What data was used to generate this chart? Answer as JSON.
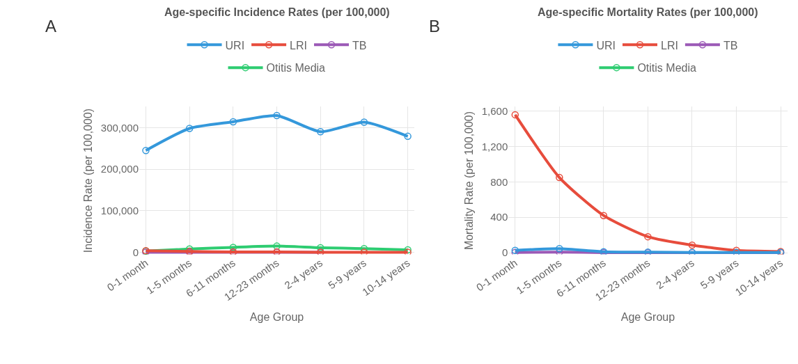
{
  "chart_data": [
    {
      "type": "line",
      "title": "Age-specific Incidence Rates (per 100,000)",
      "annotations": [
        "A"
      ],
      "xlabel": "Age Group",
      "ylabel": "Incidence Rate (per 100,000)",
      "categories": [
        "0-1 month",
        "1-5 months",
        "6-11 months",
        "12-23 months",
        "2-4 years",
        "5-9 years",
        "10-14 years"
      ],
      "series": [
        {
          "name": "URI",
          "color": "#3498db",
          "values": [
            245000,
            298000,
            314000,
            329000,
            290000,
            313000,
            279000
          ]
        },
        {
          "name": "LRI",
          "color": "#e74c3c",
          "values": [
            4000,
            2000,
            1000,
            1000,
            0,
            0,
            0
          ]
        },
        {
          "name": "TB",
          "color": "#9b59b6",
          "values": [
            0,
            0,
            0,
            0,
            0,
            null,
            null
          ]
        },
        {
          "name": "Otitis Media",
          "color": "#2ecc71",
          "values": [
            3000,
            8000,
            12000,
            15000,
            11000,
            9000,
            6000
          ]
        }
      ],
      "ylim": [
        -5000,
        350000
      ],
      "yticks": [
        {
          "value": 0,
          "label": "0"
        },
        {
          "value": 100000,
          "label": "100,000"
        },
        {
          "value": 200000,
          "label": "200,000"
        },
        {
          "value": 300000,
          "label": "300,000"
        }
      ],
      "grid": true,
      "legend": "top",
      "marker": "circle",
      "line_style": "solid"
    },
    {
      "type": "line",
      "title": "Age-specific Mortality Rates (per 100,000)",
      "annotations": [
        "B"
      ],
      "xlabel": "Age Group",
      "ylabel": "Mortality Rate (per 100,000)",
      "categories": [
        "0-1 month",
        "1-5 months",
        "6-11 months",
        "12-23 months",
        "2-4 years",
        "5-9 years",
        "10-14 years"
      ],
      "series": [
        {
          "name": "URI",
          "color": "#3498db",
          "values": [
            25,
            45,
            10,
            5,
            3,
            3,
            3
          ]
        },
        {
          "name": "LRI",
          "color": "#e74c3c",
          "values": [
            1560,
            850,
            420,
            180,
            85,
            25,
            12
          ]
        },
        {
          "name": "TB",
          "color": "#9b59b6",
          "values": [
            2,
            5,
            1,
            0,
            0,
            0,
            0
          ]
        },
        {
          "name": "Otitis Media",
          "color": "#2ecc71",
          "values": [
            null,
            null,
            null,
            null,
            null,
            null,
            null
          ]
        }
      ],
      "ylim": [
        -20,
        1650
      ],
      "yticks": [
        0,
        400,
        800,
        {
          "value": 1200,
          "label": "1,200"
        },
        {
          "value": 1600,
          "label": "1,600"
        }
      ],
      "grid": true,
      "legend": "top",
      "marker": "circle",
      "line_style": "solid"
    }
  ]
}
